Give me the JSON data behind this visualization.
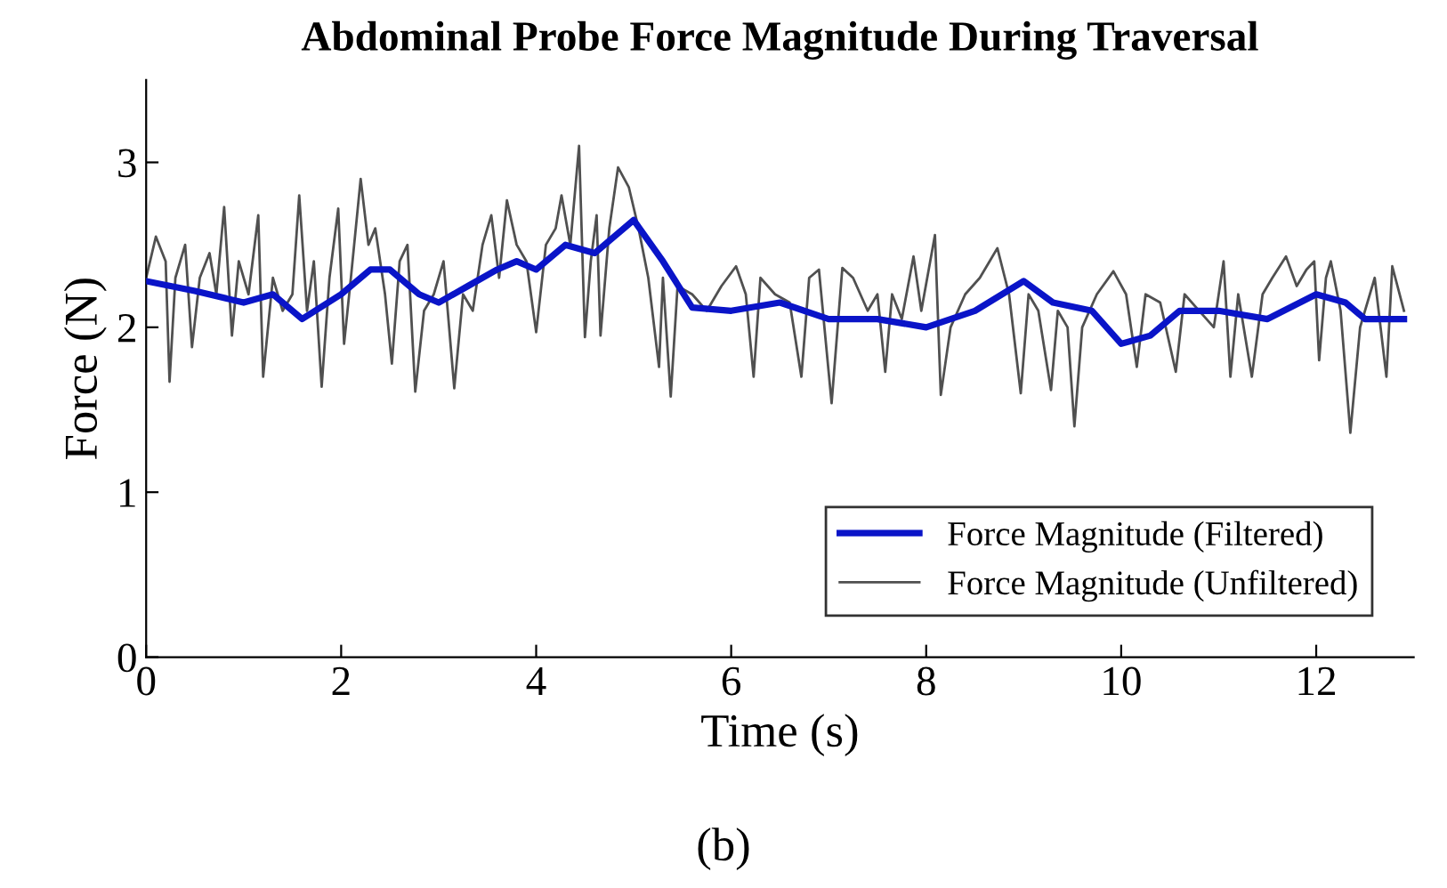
{
  "chart_data": {
    "type": "line",
    "title": "Abdominal Probe Force Magnitude During Traversal",
    "xlabel": "Time (s)",
    "ylabel": "Force (N)",
    "annotations": [
      "(b)"
    ],
    "xlim": [
      0,
      13
    ],
    "ylim": [
      0,
      3.5
    ],
    "xticks": [
      0,
      2,
      4,
      6,
      8,
      10,
      12
    ],
    "yticks": [
      0,
      1,
      2,
      3
    ],
    "grid": false,
    "legend": "bottom right",
    "line_style": "solid",
    "marker": "none",
    "series": [
      {
        "name": "Force Magnitude (Filtered)",
        "color": "#0a14c8",
        "x": [
          0,
          0.5,
          1,
          1.3,
          1.6,
          2.0,
          2.3,
          2.5,
          2.8,
          3.0,
          3.3,
          3.6,
          3.8,
          4.0,
          4.3,
          4.6,
          5.0,
          5.3,
          5.6,
          6.0,
          6.5,
          7,
          7.5,
          8,
          8.5,
          9,
          9.3,
          9.7,
          10,
          10.3,
          10.6,
          11,
          11.5,
          12,
          12.3,
          12.5,
          12.9
        ],
        "values": [
          2.28,
          2.22,
          2.15,
          2.2,
          2.05,
          2.2,
          2.35,
          2.35,
          2.2,
          2.15,
          2.25,
          2.35,
          2.4,
          2.35,
          2.5,
          2.45,
          2.65,
          2.4,
          2.12,
          2.1,
          2.15,
          2.05,
          2.05,
          2.0,
          2.1,
          2.28,
          2.15,
          2.1,
          1.9,
          1.95,
          2.1,
          2.1,
          2.05,
          2.2,
          2.15,
          2.05,
          2.05
        ]
      },
      {
        "name": "Force Magnitude (Unfiltered)",
        "color": "#505050",
        "x": [
          0,
          0.1,
          0.2,
          0.24,
          0.3,
          0.4,
          0.47,
          0.55,
          0.65,
          0.72,
          0.8,
          0.88,
          0.95,
          1.05,
          1.15,
          1.2,
          1.3,
          1.4,
          1.5,
          1.57,
          1.65,
          1.72,
          1.8,
          1.88,
          1.97,
          2.03,
          2.1,
          2.2,
          2.28,
          2.35,
          2.45,
          2.52,
          2.6,
          2.68,
          2.76,
          2.85,
          2.95,
          3.05,
          3.16,
          3.25,
          3.35,
          3.45,
          3.54,
          3.62,
          3.7,
          3.8,
          3.9,
          4.0,
          4.1,
          4.2,
          4.26,
          4.35,
          4.44,
          4.5,
          4.56,
          4.62,
          4.66,
          4.75,
          4.84,
          4.95,
          5.05,
          5.15,
          5.26,
          5.3,
          5.38,
          5.45,
          5.6,
          5.75,
          5.9,
          6.05,
          6.15,
          6.23,
          6.3,
          6.45,
          6.6,
          6.72,
          6.8,
          6.9,
          7.03,
          7.14,
          7.25,
          7.4,
          7.5,
          7.58,
          7.65,
          7.75,
          7.87,
          7.95,
          8.09,
          8.15,
          8.25,
          8.4,
          8.55,
          8.65,
          8.73,
          8.85,
          8.97,
          9.05,
          9.15,
          9.28,
          9.35,
          9.45,
          9.52,
          9.6,
          9.75,
          9.92,
          10.05,
          10.16,
          10.25,
          10.4,
          10.56,
          10.65,
          10.8,
          10.95,
          11.05,
          11.12,
          11.2,
          11.34,
          11.45,
          11.55,
          11.69,
          11.8,
          11.9,
          11.98,
          12.03,
          12.1,
          12.15,
          12.25,
          12.35,
          12.45,
          12.6,
          12.72,
          12.78,
          12.9
        ],
        "values": [
          2.3,
          2.55,
          2.4,
          1.67,
          2.3,
          2.5,
          1.88,
          2.3,
          2.45,
          2.2,
          2.73,
          1.95,
          2.4,
          2.2,
          2.68,
          1.7,
          2.3,
          2.1,
          2.2,
          2.8,
          2.1,
          2.4,
          1.64,
          2.3,
          2.72,
          1.9,
          2.3,
          2.9,
          2.5,
          2.6,
          2.2,
          1.78,
          2.4,
          2.5,
          1.61,
          2.1,
          2.2,
          2.4,
          1.63,
          2.2,
          2.1,
          2.5,
          2.68,
          2.3,
          2.77,
          2.5,
          2.4,
          1.97,
          2.5,
          2.6,
          2.8,
          2.5,
          3.1,
          1.94,
          2.4,
          2.68,
          1.95,
          2.6,
          2.97,
          2.85,
          2.6,
          2.3,
          1.76,
          2.3,
          1.58,
          2.25,
          2.2,
          2.1,
          2.25,
          2.37,
          2.2,
          1.7,
          2.3,
          2.2,
          2.15,
          1.7,
          2.3,
          2.35,
          1.54,
          2.36,
          2.3,
          2.1,
          2.2,
          1.73,
          2.2,
          2.05,
          2.43,
          2.1,
          2.56,
          1.59,
          2.0,
          2.2,
          2.3,
          2.4,
          2.48,
          2.2,
          1.6,
          2.2,
          2.1,
          1.62,
          2.1,
          2.0,
          1.4,
          2.0,
          2.2,
          2.34,
          2.2,
          1.76,
          2.2,
          2.15,
          1.73,
          2.2,
          2.1,
          2.0,
          2.4,
          1.7,
          2.2,
          1.7,
          2.2,
          2.3,
          2.43,
          2.25,
          2.35,
          2.4,
          1.8,
          2.3,
          2.4,
          2.1,
          1.36,
          2.0,
          2.3,
          1.7,
          2.37,
          2.1
        ]
      }
    ]
  }
}
